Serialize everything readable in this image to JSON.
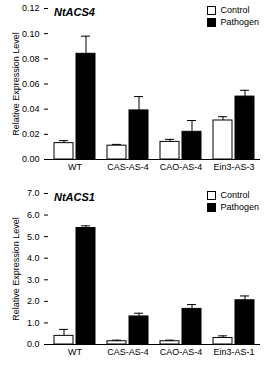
{
  "chart_data": [
    {
      "type": "bar",
      "title": "NtACS4",
      "categories": [
        "WT",
        "CAS-AS-4",
        "CAO-AS-4",
        "Ein3-AS-3"
      ],
      "series": [
        {
          "name": "Control",
          "color": "#ffffff",
          "values": [
            0.013,
            0.011,
            0.014,
            0.031
          ],
          "errors": [
            0.002,
            0.001,
            0.002,
            0.003
          ]
        },
        {
          "name": "Pathogen",
          "color": "#000000",
          "values": [
            0.084,
            0.039,
            0.022,
            0.05
          ],
          "errors": [
            0.014,
            0.011,
            0.009,
            0.005
          ]
        }
      ],
      "y_label": "Relative Expression Level",
      "ylim": [
        0,
        0.12
      ],
      "yticks": [
        {
          "value": 0,
          "label": "0.00"
        },
        {
          "value": 0.02,
          "label": "0.02"
        },
        {
          "value": 0.04,
          "label": "0.04"
        },
        {
          "value": 0.06,
          "label": "0.06"
        },
        {
          "value": 0.08,
          "label": "0.08"
        },
        {
          "value": 0.1,
          "label": "0.10"
        },
        {
          "value": 0.12,
          "label": "0.12"
        }
      ],
      "legend": "top-right",
      "grid": false
    },
    {
      "type": "bar",
      "title": "NtACS1",
      "categories": [
        "WT",
        "CAS-AS-4",
        "CAO-AS-4",
        "Ein3-AS-1"
      ],
      "series": [
        {
          "name": "Control",
          "color": "#ffffff",
          "values": [
            0.4,
            0.15,
            0.15,
            0.3
          ],
          "errors": [
            0.3,
            0.05,
            0.05,
            0.1
          ]
        },
        {
          "name": "Pathogen",
          "color": "#000000",
          "values": [
            5.4,
            1.3,
            1.65,
            2.05
          ],
          "errors": [
            0.1,
            0.15,
            0.2,
            0.2
          ]
        }
      ],
      "y_label": "Relative Expression Level",
      "ylim": [
        0,
        7
      ],
      "yticks": [
        {
          "value": 0,
          "label": "0.0"
        },
        {
          "value": 1,
          "label": "1.0"
        },
        {
          "value": 2,
          "label": "2.0"
        },
        {
          "value": 3,
          "label": "3.0"
        },
        {
          "value": 4,
          "label": "4.0"
        },
        {
          "value": 5,
          "label": "5.0"
        },
        {
          "value": 6,
          "label": "6.0"
        },
        {
          "value": 7,
          "label": "7.0"
        }
      ],
      "legend": "top-right",
      "grid": false
    }
  ]
}
